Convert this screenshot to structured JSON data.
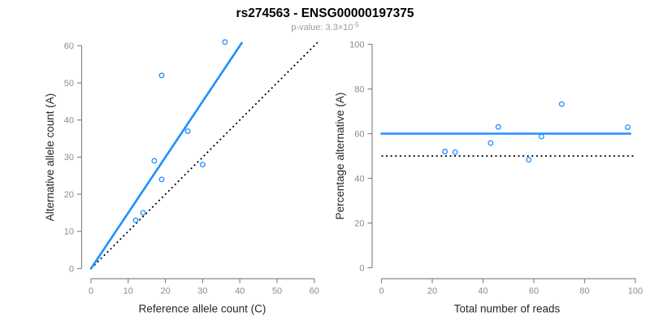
{
  "header": {
    "title": "rs274563 - ENSG00000197375",
    "pvalue_label": "p-value: ",
    "pvalue_mantissa": "3.3",
    "pvalue_times": "×",
    "pvalue_base": "10",
    "pvalue_exponent": "-5"
  },
  "colors": {
    "accent_blue": "#1e90ff",
    "axis_gray": "#878787",
    "tick_label_gray": "#8c8c8c",
    "axis_title_dark": "#262626",
    "title_black": "#000000",
    "subtitle_gray": "#9a9a9a",
    "line_black": "#000000"
  },
  "chart_data": [
    {
      "id": "allele-counts-scatter",
      "type": "scatter",
      "xlabel": "Reference allele count (C)",
      "ylabel": "Alternative allele count (A)",
      "xlim": [
        0,
        60
      ],
      "ylim": [
        0,
        60
      ],
      "xticks": [
        0,
        10,
        20,
        30,
        40,
        50,
        60
      ],
      "yticks": [
        0,
        10,
        20,
        30,
        40,
        50,
        60
      ],
      "grid": false,
      "points": [
        [
          12,
          13
        ],
        [
          14,
          15
        ],
        [
          17,
          29
        ],
        [
          19,
          24
        ],
        [
          19,
          52
        ],
        [
          26,
          37
        ],
        [
          30,
          28
        ],
        [
          36,
          61
        ]
      ],
      "fit_line": {
        "style": "solid",
        "slope": 1.5,
        "x1": 0,
        "y1": 0,
        "x2": 40.5,
        "y2": 60.75
      },
      "reference_line": {
        "style": "dotted",
        "slope": 1,
        "x1": 0,
        "y1": 0,
        "x2": 61,
        "y2": 61
      }
    },
    {
      "id": "percentage-scatter",
      "type": "scatter",
      "xlabel": "Total number of reads",
      "ylabel": "Percentage alternative (A)",
      "xlim": [
        0,
        100
      ],
      "ylim": [
        0,
        100
      ],
      "xticks": [
        0,
        20,
        40,
        60,
        80,
        100
      ],
      "yticks": [
        0,
        20,
        40,
        60,
        80,
        100
      ],
      "grid": false,
      "points": [
        [
          25,
          52
        ],
        [
          29,
          51.7
        ],
        [
          43,
          55.8
        ],
        [
          46,
          63
        ],
        [
          58,
          48.3
        ],
        [
          63,
          58.7
        ],
        [
          71,
          73.2
        ],
        [
          97,
          62.9
        ]
      ],
      "fit_line": {
        "style": "solid",
        "x1": 0,
        "y1": 60,
        "x2": 98,
        "y2": 60
      },
      "reference_line": {
        "style": "dotted",
        "x1": 0,
        "y1": 50,
        "x2": 100,
        "y2": 50
      }
    }
  ]
}
